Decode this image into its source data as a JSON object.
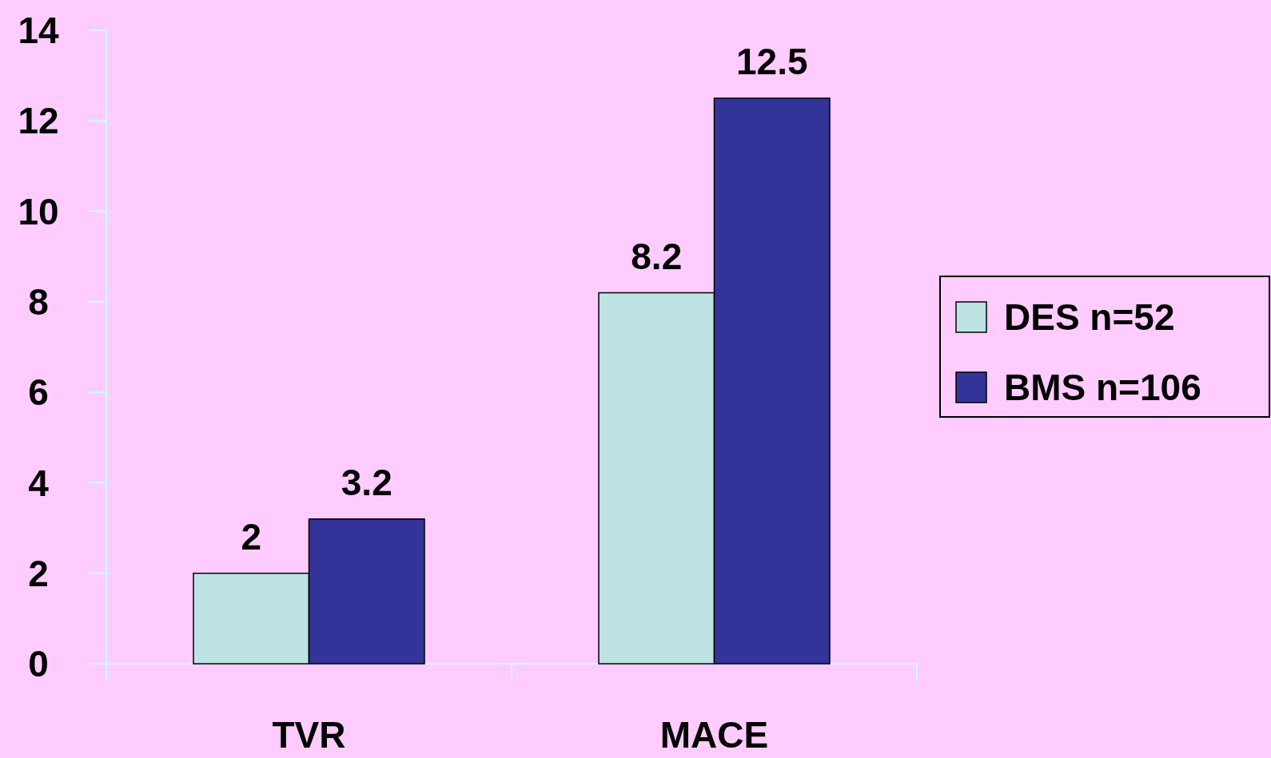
{
  "chart_data": {
    "type": "bar",
    "categories": [
      "TVR",
      "MACE"
    ],
    "series": [
      {
        "name": "DES n=52",
        "color": "#bde3e3",
        "values": [
          2,
          8.2
        ]
      },
      {
        "name": "BMS n=106",
        "color": "#333399",
        "values": [
          3.2,
          12.5
        ]
      }
    ],
    "ylim": [
      0,
      14
    ],
    "yticks": [
      0,
      2,
      4,
      6,
      8,
      10,
      12,
      14
    ],
    "data_labels": true,
    "legend": "right",
    "grid": false
  }
}
